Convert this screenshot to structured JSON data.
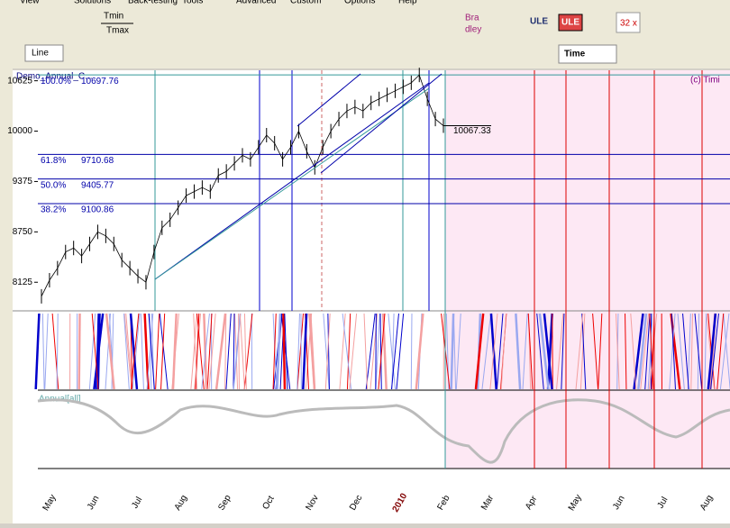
{
  "menu": [
    "View",
    "Solutions",
    "Back-testing",
    "Tools",
    "Advanced",
    "Custom",
    "Options",
    "Help"
  ],
  "toolbar": {
    "tmin": "Tmin",
    "tmax": "Tmax",
    "bradley_1": "Bra",
    "bradley_2": "dley",
    "ule_1": "ULE",
    "ule_2": "ULE",
    "zoom": "32 x",
    "line": "Line",
    "time": "Time"
  },
  "chart": {
    "title": "Demo_Annual_C...",
    "copyright": "(c) Timi",
    "indicator": "Annual[all]",
    "ylim": [
      7770,
      10755
    ],
    "yticks": [
      10625,
      10000,
      9375,
      8750,
      8125
    ],
    "fib": [
      {
        "pct": "100.0%",
        "value": 10697.76
      },
      {
        "pct": "61.8%",
        "value": 9710.68
      },
      {
        "pct": "50.0%",
        "value": 9405.77
      },
      {
        "pct": "38.2%",
        "value": 9100.86
      }
    ],
    "last": 10067.33,
    "months": [
      "May",
      "Jun",
      "Jul",
      "Aug",
      "Sep",
      "Oct",
      "Nov",
      "Dec",
      "2010",
      "Feb",
      "Mar",
      "Apr",
      "May",
      "Jun",
      "Jul",
      "Aug"
    ],
    "price": [
      7950,
      8150,
      8300,
      8500,
      8550,
      8450,
      8600,
      8750,
      8700,
      8600,
      8400,
      8300,
      8200,
      8125,
      8500,
      8800,
      8900,
      9050,
      9200,
      9250,
      9300,
      9250,
      9450,
      9500,
      9600,
      9700,
      9650,
      9800,
      9950,
      9850,
      9650,
      9800,
      10000,
      9750,
      9550,
      9800,
      10000,
      10150,
      10250,
      10300,
      10250,
      10350,
      10400,
      10450,
      10500,
      10550,
      10600,
      10697,
      10400,
      10150,
      10067
    ]
  }
}
